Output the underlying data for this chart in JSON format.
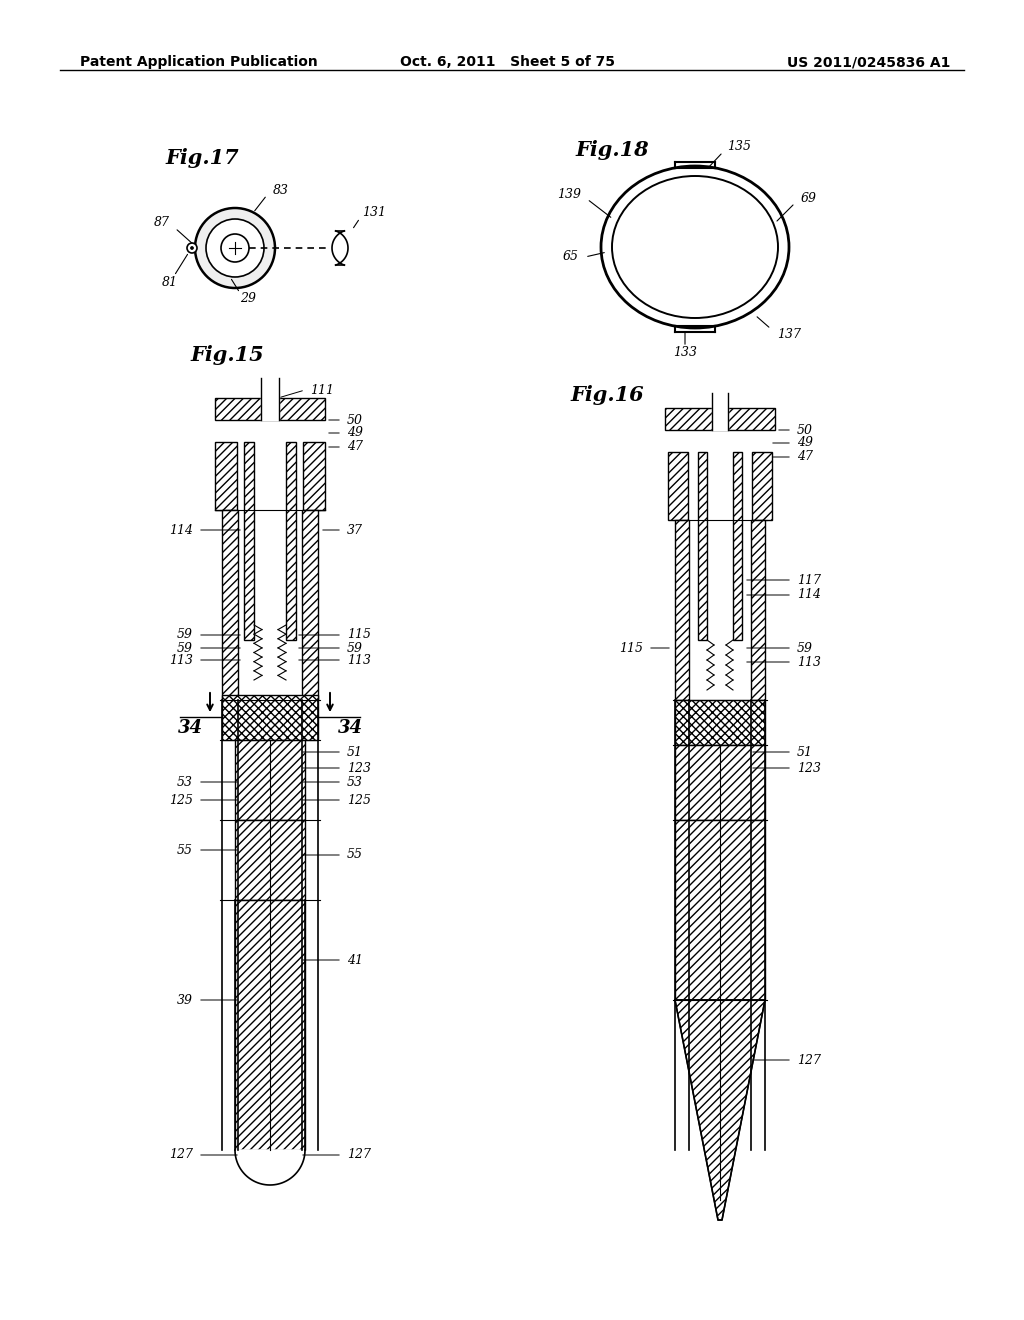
{
  "bg_color": "#ffffff",
  "header_left": "Patent Application Publication",
  "header_mid": "Oct. 6, 2011   Sheet 5 of 75",
  "header_right": "US 2011/0245836 A1",
  "fig17_title": "Fig.17",
  "fig18_title": "Fig.18",
  "fig15_title": "Fig.15",
  "fig16_title": "Fig.16"
}
